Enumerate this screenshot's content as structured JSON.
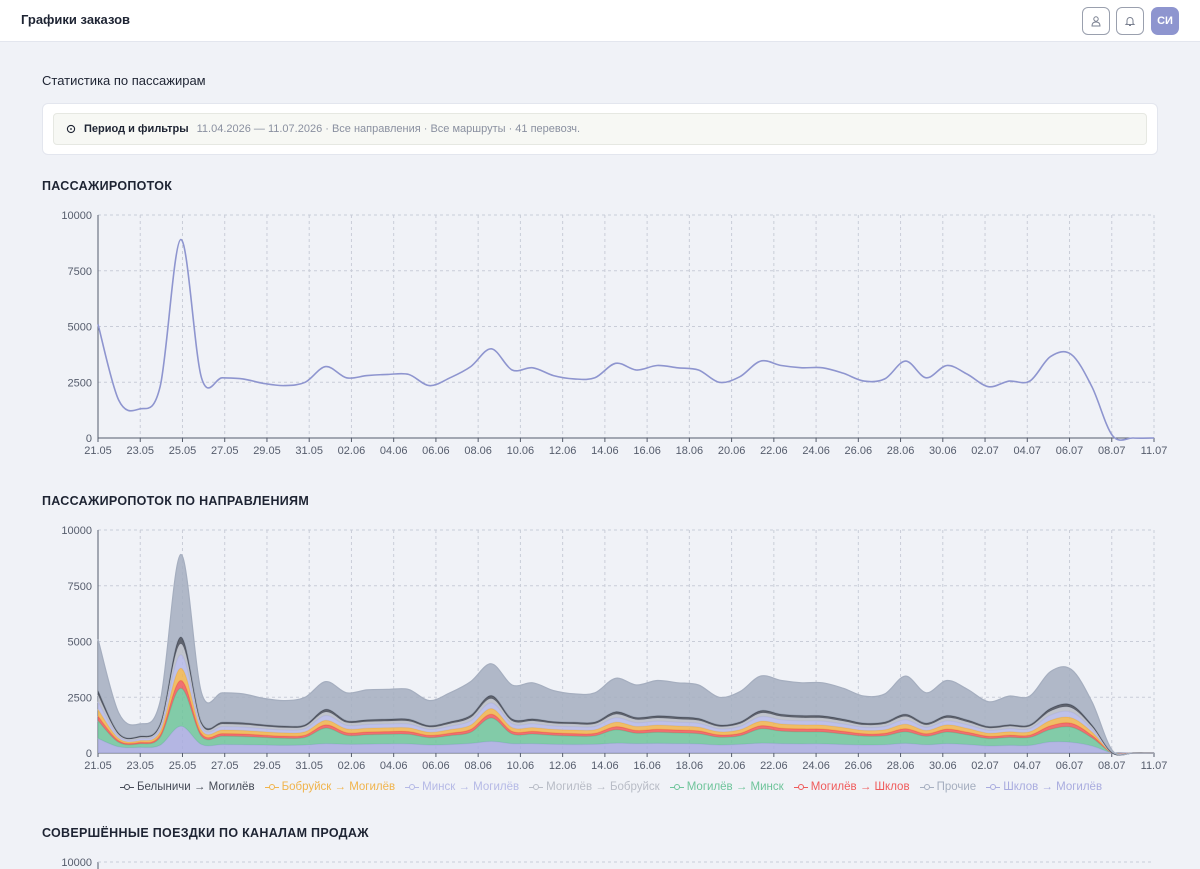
{
  "header": {
    "title": "Графики заказов",
    "user_initials": "СИ"
  },
  "page": {
    "section_title": "Статистика по пассажирам",
    "filter": {
      "label": "Период и фильтры",
      "summary": "11.04.2026 — 11.07.2026 · Все направления · Все маршруты · 41 перевозч."
    }
  },
  "colors": {
    "accent": "#8e95cf",
    "series_total": "#8e95cf"
  },
  "chart_data": [
    {
      "type": "line",
      "title": "ПАССАЖИРОПОТОК",
      "x_ticks": [
        "21.05",
        "23.05",
        "25.05",
        "27.05",
        "29.05",
        "31.05",
        "02.06",
        "04.06",
        "06.06",
        "08.06",
        "10.06",
        "12.06",
        "14.06",
        "16.06",
        "18.06",
        "20.06",
        "22.06",
        "24.06",
        "26.06",
        "28.06",
        "30.06",
        "02.07",
        "04.07",
        "06.07",
        "08.07",
        "11.07"
      ],
      "y_ticks": [
        "0",
        "2500",
        "5000",
        "7500",
        "10000"
      ],
      "ylim": [
        0,
        10000
      ],
      "grid": true,
      "series": [
        {
          "color": "#8e95cf",
          "values": [
            5100,
            1700,
            1300,
            2300,
            8900,
            2700,
            2700,
            2650,
            2450,
            2350,
            2500,
            3200,
            2700,
            2800,
            2850,
            2850,
            2350,
            2700,
            3200,
            4000,
            3050,
            3150,
            2800,
            2650,
            2700,
            3350,
            3050,
            3250,
            3150,
            3050,
            2500,
            2750,
            3450,
            3250,
            3150,
            3150,
            2900,
            2550,
            2650,
            3450,
            2700,
            3250,
            2850,
            2300,
            2550,
            2550,
            3650,
            3750,
            2300,
            100,
            0,
            0
          ]
        }
      ]
    },
    {
      "type": "area",
      "stacked": true,
      "title": "ПАССАЖИРОПОТОК ПО НАПРАВЛЕНИЯМ",
      "x_ticks": [
        "21.05",
        "23.05",
        "25.05",
        "27.05",
        "29.05",
        "31.05",
        "02.06",
        "04.06",
        "06.06",
        "08.06",
        "10.06",
        "12.06",
        "14.06",
        "16.06",
        "18.06",
        "20.06",
        "22.06",
        "24.06",
        "26.06",
        "28.06",
        "30.06",
        "02.07",
        "04.07",
        "06.07",
        "08.07",
        "11.07"
      ],
      "y_ticks": [
        "0",
        "2500",
        "5000",
        "7500",
        "10000"
      ],
      "ylim": [
        0,
        10000
      ],
      "grid": true,
      "legend_position": "bottom",
      "series": [
        {
          "name": "Шклов → Могилёв",
          "color": "#a9acdf",
          "values": [
            650,
            280,
            250,
            350,
            1200,
            380,
            380,
            370,
            360,
            340,
            360,
            420,
            390,
            400,
            410,
            410,
            360,
            380,
            430,
            520,
            420,
            420,
            390,
            380,
            390,
            440,
            420,
            430,
            420,
            410,
            360,
            390,
            440,
            420,
            410,
            410,
            380,
            360,
            370,
            430,
            370,
            420,
            380,
            320,
            340,
            340,
            500,
            480,
            320,
            0,
            0,
            0
          ]
        },
        {
          "name": "Могилёв → Минск",
          "color": "#6ec49a",
          "values": [
            800,
            200,
            160,
            350,
            1700,
            370,
            380,
            370,
            340,
            320,
            340,
            700,
            400,
            420,
            430,
            430,
            330,
            400,
            500,
            1050,
            430,
            430,
            400,
            380,
            380,
            600,
            470,
            500,
            480,
            460,
            350,
            380,
            640,
            560,
            540,
            530,
            470,
            400,
            400,
            520,
            380,
            520,
            430,
            330,
            360,
            360,
            560,
            680,
            360,
            0,
            0,
            0
          ]
        },
        {
          "name": "Могилёв → Шклов",
          "color": "#ef5b5b",
          "values": [
            200,
            70,
            60,
            100,
            350,
            110,
            110,
            110,
            100,
            100,
            100,
            140,
            120,
            120,
            120,
            120,
            100,
            110,
            130,
            170,
            120,
            120,
            110,
            110,
            110,
            140,
            120,
            130,
            130,
            120,
            100,
            110,
            140,
            130,
            130,
            130,
            120,
            100,
            110,
            140,
            110,
            130,
            120,
            100,
            100,
            100,
            160,
            170,
            110,
            0,
            0,
            0
          ]
        },
        {
          "name": "Бобруйск → Могилёв",
          "color": "#f0b44c",
          "values": [
            300,
            100,
            80,
            150,
            550,
            160,
            160,
            160,
            150,
            140,
            150,
            200,
            170,
            170,
            170,
            170,
            140,
            160,
            190,
            250,
            170,
            170,
            160,
            160,
            160,
            200,
            180,
            190,
            180,
            170,
            140,
            160,
            200,
            190,
            180,
            180,
            170,
            150,
            160,
            200,
            150,
            190,
            170,
            140,
            150,
            150,
            240,
            250,
            150,
            0,
            0,
            0
          ]
        },
        {
          "name": "Минск → Могилёв",
          "color": "#b5b9e6",
          "values": [
            350,
            100,
            80,
            150,
            600,
            150,
            150,
            150,
            140,
            130,
            140,
            220,
            160,
            170,
            170,
            170,
            130,
            150,
            190,
            250,
            170,
            170,
            150,
            150,
            150,
            200,
            170,
            180,
            170,
            170,
            130,
            150,
            210,
            190,
            180,
            180,
            160,
            140,
            150,
            200,
            140,
            180,
            160,
            130,
            140,
            140,
            240,
            260,
            140,
            0,
            0,
            0
          ]
        },
        {
          "name": "Могилёв → Бобруйск",
          "color": "#b8bcc6",
          "values": [
            300,
            80,
            70,
            120,
            500,
            120,
            120,
            120,
            110,
            110,
            110,
            160,
            130,
            130,
            130,
            130,
            100,
            120,
            150,
            200,
            130,
            130,
            120,
            120,
            120,
            160,
            140,
            140,
            140,
            130,
            110,
            120,
            160,
            150,
            140,
            140,
            130,
            110,
            120,
            150,
            110,
            140,
            130,
            100,
            110,
            110,
            180,
            190,
            110,
            0,
            0,
            0
          ]
        },
        {
          "name": "Белыничи → Могилёв",
          "color": "#454a56",
          "values": [
            200,
            60,
            50,
            80,
            300,
            80,
            80,
            80,
            70,
            70,
            70,
            120,
            80,
            80,
            90,
            90,
            70,
            80,
            100,
            140,
            90,
            90,
            80,
            80,
            80,
            110,
            90,
            100,
            100,
            90,
            70,
            80,
            110,
            100,
            100,
            100,
            90,
            80,
            80,
            100,
            80,
            100,
            90,
            70,
            70,
            70,
            120,
            130,
            70,
            0,
            0,
            0
          ]
        },
        {
          "name": "Прочие",
          "color": "#a5aebf",
          "values": [
            2300,
            910,
            550,
            1000,
            3700,
            1330,
            1320,
            1290,
            1180,
            1140,
            1230,
            1240,
            1250,
            1340,
            1330,
            1330,
            1120,
            1300,
            1510,
            1420,
            1520,
            1620,
            1390,
            1270,
            1310,
            1500,
            1460,
            1580,
            1530,
            1500,
            1240,
            1360,
            1550,
            1510,
            1470,
            1480,
            1380,
            1210,
            1260,
            1710,
            1360,
            1570,
            1370,
            1110,
            1280,
            1280,
            1650,
            1590,
            1040,
            100,
            0,
            0
          ]
        }
      ]
    },
    {
      "type": "line",
      "title": "СОВЕРШЁННЫЕ ПОЕЗДКИ ПО КАНАЛАМ ПРОДАЖ",
      "y_ticks": [
        "10000"
      ]
    }
  ]
}
